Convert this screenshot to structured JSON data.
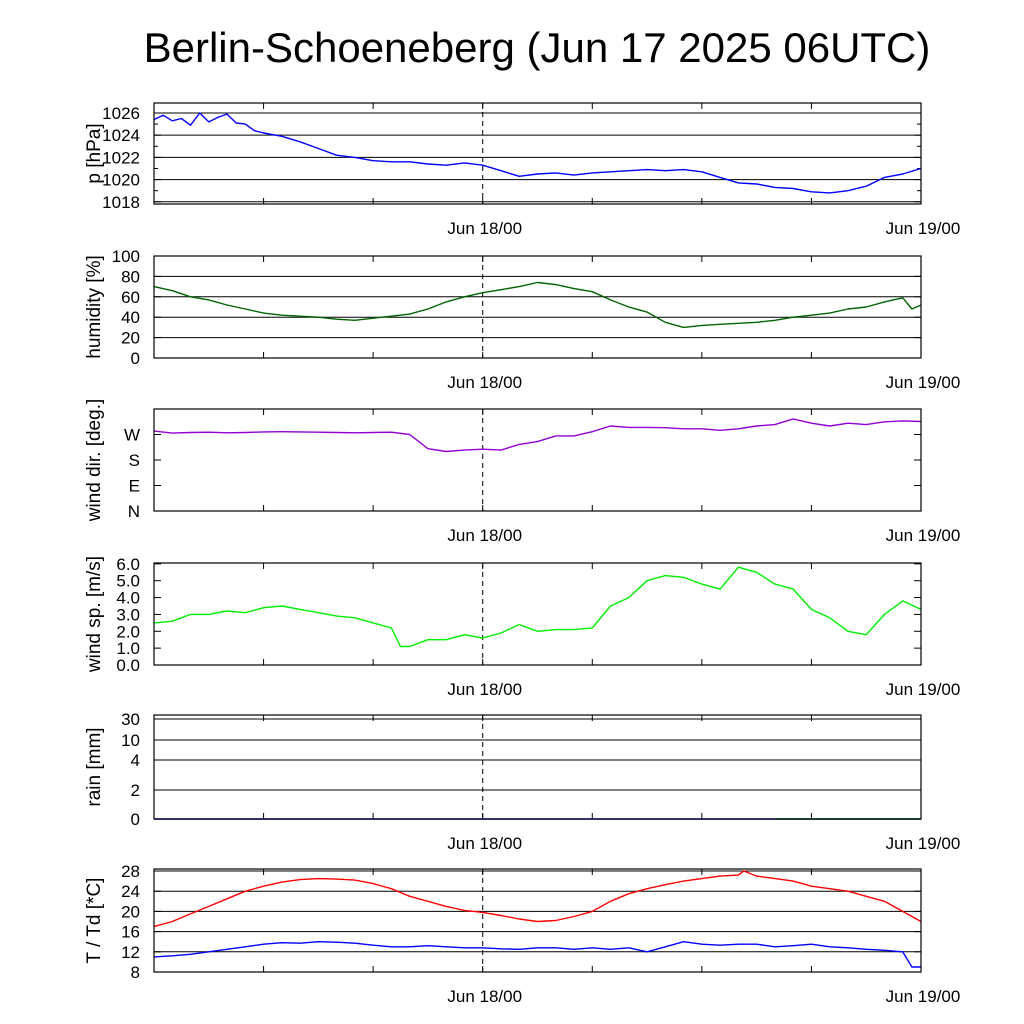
{
  "title": "Berlin-Schoeneberg (Jun 17 2025 06UTC)",
  "chart_data": [
    {
      "type": "line",
      "ylabel": "p [hPa]",
      "ylim": [
        1017.8,
        1026.9
      ],
      "yticks": [
        1018,
        1020,
        1022,
        1024,
        1026
      ],
      "ytick_labels": [
        "1018",
        "1020",
        "1022",
        "1024",
        "1026"
      ],
      "grid": true,
      "xlim_hours": [
        0,
        42
      ],
      "xticks": [
        {
          "hours": 18,
          "label": "Jun 18/00"
        },
        {
          "hours": 42,
          "label": "Jun 19/00"
        }
      ],
      "series": [
        {
          "color": "#0000ff",
          "x": [
            0,
            0.5,
            1,
            1.5,
            2,
            2.5,
            3,
            3.5,
            4,
            4.5,
            5,
            5.5,
            6,
            7,
            8,
            9,
            10,
            11,
            12,
            13,
            14,
            15,
            16,
            17,
            18,
            19,
            20,
            21,
            22,
            23,
            24,
            25,
            26,
            27,
            28,
            29,
            30,
            31,
            32,
            33,
            34,
            35,
            36,
            37,
            38,
            39,
            40,
            41,
            42
          ],
          "values": [
            1025.4,
            1025.8,
            1025.3,
            1025.5,
            1024.9,
            1026.0,
            1025.2,
            1025.6,
            1025.9,
            1025.1,
            1025.0,
            1024.4,
            1024.2,
            1023.9,
            1023.4,
            1022.8,
            1022.2,
            1022.0,
            1021.7,
            1021.6,
            1021.6,
            1021.4,
            1021.3,
            1021.5,
            1021.3,
            1020.8,
            1020.3,
            1020.5,
            1020.6,
            1020.4,
            1020.6,
            1020.7,
            1020.8,
            1020.9,
            1020.8,
            1020.9,
            1020.7,
            1020.2,
            1019.7,
            1019.6,
            1019.3,
            1019.2,
            1018.9,
            1018.8,
            1019.0,
            1019.4,
            1020.2,
            1020.5,
            1021.0
          ]
        }
      ]
    },
    {
      "type": "line",
      "ylabel": "humidity [%]",
      "ylim": [
        0,
        100
      ],
      "yticks": [
        0,
        20,
        40,
        60,
        80,
        100
      ],
      "ytick_labels": [
        "0",
        "20",
        "40",
        "60",
        "80",
        "100"
      ],
      "grid": true,
      "xlim_hours": [
        0,
        42
      ],
      "xticks": [
        {
          "hours": 18,
          "label": "Jun 18/00"
        },
        {
          "hours": 42,
          "label": "Jun 19/00"
        }
      ],
      "series": [
        {
          "color": "#006400",
          "x": [
            0,
            1,
            2,
            3,
            4,
            5,
            6,
            7,
            8,
            9,
            10,
            11,
            12,
            13,
            14,
            15,
            16,
            17,
            18,
            19,
            20,
            21,
            22,
            23,
            24,
            25,
            26,
            27,
            28,
            29,
            30,
            31,
            32,
            33,
            34,
            35,
            36,
            37,
            38,
            39,
            40,
            41,
            41.5,
            42
          ],
          "values": [
            70,
            66,
            60,
            57,
            52,
            48,
            44,
            42,
            41,
            40,
            38,
            37,
            39,
            41,
            43,
            48,
            55,
            60,
            64,
            67,
            70,
            74,
            72,
            68,
            65,
            57,
            50,
            45,
            35,
            30,
            32,
            33,
            34,
            35,
            37,
            40,
            42,
            44,
            48,
            50,
            55,
            59,
            48,
            52
          ]
        }
      ]
    },
    {
      "type": "line",
      "ylabel": "wind dir. [deg.]",
      "ylim": [
        0,
        360
      ],
      "yticks": [
        0,
        90,
        180,
        270
      ],
      "ytick_labels": [
        "N",
        "E",
        "S",
        "W"
      ],
      "grid": false,
      "xlim_hours": [
        0,
        42
      ],
      "xticks": [
        {
          "hours": 18,
          "label": "Jun 18/00"
        },
        {
          "hours": 42,
          "label": "Jun 19/00"
        }
      ],
      "series": [
        {
          "color": "#9400d3",
          "x": [
            0,
            1,
            2,
            3,
            4,
            5,
            6,
            7,
            8,
            9,
            10,
            11,
            12,
            13,
            14,
            15,
            16,
            17,
            18,
            19,
            20,
            21,
            22,
            23,
            24,
            25,
            26,
            27,
            28,
            29,
            30,
            31,
            32,
            33,
            34,
            35,
            36,
            37,
            38,
            39,
            40,
            41,
            42
          ],
          "values": [
            282,
            275,
            277,
            278,
            276,
            277,
            279,
            280,
            279,
            278,
            277,
            276,
            277,
            278,
            270,
            220,
            210,
            215,
            218,
            215,
            235,
            245,
            265,
            265,
            280,
            300,
            295,
            295,
            294,
            290,
            290,
            285,
            290,
            300,
            305,
            325,
            310,
            300,
            310,
            305,
            315,
            318,
            316
          ]
        }
      ]
    },
    {
      "type": "line",
      "ylabel": "wind sp. [m/s]",
      "ylim": [
        0,
        6.0
      ],
      "yticks": [
        0,
        1,
        2,
        3,
        4,
        5,
        6
      ],
      "ytick_labels": [
        "0.0",
        "1.0",
        "2.0",
        "3.0",
        "4.0",
        "5.0",
        "6.0"
      ],
      "grid": false,
      "xlim_hours": [
        0,
        42
      ],
      "xticks": [
        {
          "hours": 18,
          "label": "Jun 18/00"
        },
        {
          "hours": 42,
          "label": "Jun 19/00"
        }
      ],
      "series": [
        {
          "color": "#00ee00",
          "x": [
            0,
            1,
            2,
            3,
            4,
            5,
            6,
            7,
            8,
            9,
            10,
            11,
            12,
            13,
            13.5,
            14,
            15,
            16,
            17,
            18,
            19,
            20,
            21,
            22,
            23,
            24,
            25,
            26,
            27,
            28,
            29,
            30,
            31,
            32,
            33,
            34,
            35,
            36,
            37,
            38,
            39,
            40,
            41,
            42
          ],
          "values": [
            2.5,
            2.6,
            3.0,
            3.0,
            3.2,
            3.1,
            3.4,
            3.5,
            3.3,
            3.1,
            2.9,
            2.8,
            2.5,
            2.2,
            1.1,
            1.1,
            1.5,
            1.5,
            1.8,
            1.6,
            1.9,
            2.4,
            2.0,
            2.1,
            2.1,
            2.2,
            3.5,
            4.0,
            5.0,
            5.3,
            5.2,
            4.8,
            4.5,
            5.8,
            5.5,
            4.8,
            4.5,
            3.3,
            2.8,
            2.0,
            1.8,
            3.0,
            3.8,
            3.3
          ]
        }
      ]
    },
    {
      "type": "line",
      "ylabel": "rain [mm]",
      "yticks": [
        0,
        2,
        4,
        10,
        30
      ],
      "ytick_labels": [
        "0",
        "2",
        "4",
        "10",
        "30"
      ],
      "grid": true,
      "xlim_hours": [
        0,
        42
      ],
      "xticks": [
        {
          "hours": 18,
          "label": "Jun 18/00"
        },
        {
          "hours": 42,
          "label": "Jun 19/00"
        }
      ],
      "series": [
        {
          "color": "#0000ff",
          "x": [
            0,
            42
          ],
          "values": [
            0,
            0
          ]
        },
        {
          "color": "#00aa00",
          "x": [
            34,
            42
          ],
          "values": [
            0,
            0
          ]
        }
      ]
    },
    {
      "type": "line",
      "ylabel": "T / Td [*C]",
      "ylim": [
        8,
        28
      ],
      "yticks": [
        8,
        12,
        16,
        20,
        24,
        28
      ],
      "ytick_labels": [
        "8",
        "12",
        "16",
        "20",
        "24",
        "28"
      ],
      "grid": true,
      "xlim_hours": [
        0,
        42
      ],
      "xticks": [
        {
          "hours": 18,
          "label": "Jun 18/00"
        },
        {
          "hours": 42,
          "label": "Jun 19/00"
        }
      ],
      "series": [
        {
          "color": "#ff0000",
          "x": [
            0,
            1,
            2,
            3,
            4,
            5,
            6,
            7,
            8,
            9,
            10,
            11,
            12,
            13,
            14,
            15,
            16,
            17,
            18,
            19,
            20,
            21,
            22,
            23,
            24,
            25,
            26,
            27,
            28,
            29,
            30,
            31,
            32,
            32.3,
            33,
            34,
            35,
            36,
            37,
            38,
            39,
            40,
            41,
            42
          ],
          "values": [
            17,
            18,
            19.5,
            21,
            22.5,
            24,
            25,
            25.8,
            26.3,
            26.5,
            26.4,
            26.2,
            25.5,
            24.5,
            23,
            22,
            21,
            20.2,
            19.8,
            19.2,
            18.5,
            18,
            18.2,
            19,
            20,
            22,
            23.5,
            24.5,
            25.3,
            26,
            26.5,
            27,
            27.2,
            28,
            27,
            26.5,
            26,
            25,
            24.5,
            24,
            23,
            22,
            20,
            18
          ]
        },
        {
          "color": "#0000ff",
          "x": [
            0,
            1,
            2,
            3,
            4,
            5,
            6,
            7,
            8,
            9,
            10,
            11,
            12,
            13,
            14,
            15,
            16,
            17,
            18,
            19,
            20,
            21,
            22,
            23,
            24,
            25,
            26,
            27,
            28,
            29,
            30,
            31,
            32,
            33,
            34,
            35,
            36,
            37,
            38,
            39,
            40,
            41,
            41.5,
            42
          ],
          "values": [
            11,
            11.2,
            11.5,
            12,
            12.5,
            13,
            13.5,
            13.8,
            13.7,
            14,
            13.9,
            13.7,
            13.3,
            13,
            13,
            13.2,
            13,
            12.8,
            12.8,
            12.6,
            12.5,
            12.8,
            12.8,
            12.5,
            12.8,
            12.5,
            12.8,
            12,
            13,
            14,
            13.5,
            13.3,
            13.5,
            13.5,
            13,
            13.2,
            13.5,
            13,
            12.8,
            12.5,
            12.3,
            12,
            9,
            9
          ]
        }
      ]
    }
  ]
}
